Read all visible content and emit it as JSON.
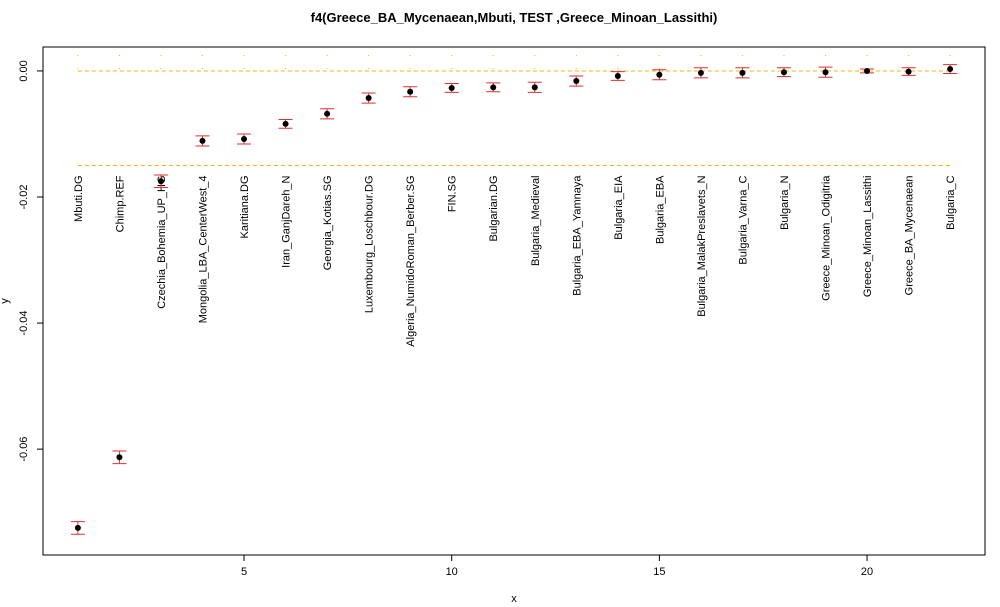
{
  "chart_data": {
    "type": "scatter",
    "title": "f4(Greece_BA_Mycenaean,Mbuti, TEST ,Greece_Minoan_Lassithi)",
    "x_label": "x",
    "y_label": "y",
    "x": [
      1,
      2,
      3,
      4,
      5,
      6,
      7,
      8,
      9,
      10,
      11,
      12,
      13,
      14,
      15,
      16,
      17,
      18,
      19,
      20,
      21,
      22
    ],
    "point_labels": [
      "Mbuti.DG",
      "Chimp.REF",
      "Czechia_Bohemia_UP_HG",
      "Mongolia_LBA_CenterWest_4",
      "Karitiana.DG",
      "Iran_GanjDareh_N",
      "Georgia_Kotias.SG",
      "Luxembourg_Loschbour.DG",
      "Algeria_NumidoRoman_Berber.SG",
      "FIN.SG",
      "Bulgarian.DG",
      "Bulgaria_Medieval",
      "Bulgaria_EBA_Yamnaya",
      "Bulgaria_EIA",
      "Bulgaria_EBA",
      "Bulgaria_MalakPreslavets_N",
      "Bulgaria_Varna_C",
      "Bulgaria_N",
      "Greece_Minoan_Odigitria",
      "Greece_Minoan_Lassithi",
      "Greece_BA_Mycenaean",
      "Bulgaria_C"
    ],
    "series": [
      {
        "color": "#000000",
        "error_color": "#e03030",
        "values": [
          -0.0725,
          -0.0613,
          -0.0175,
          -0.0111,
          -0.0108,
          -0.0084,
          -0.0068,
          -0.0043,
          -0.0033,
          -0.0027,
          -0.0026,
          -0.0026,
          -0.0016,
          -0.0008,
          -0.0006,
          -0.0003,
          -0.0003,
          -0.0002,
          -0.0002,
          0,
          -0.0001,
          0.0003
        ],
        "errors": [
          0.001,
          0.001,
          0.001,
          0.0008,
          0.0008,
          0.0007,
          0.0008,
          0.0008,
          0.0008,
          0.0007,
          0.0007,
          0.0008,
          0.0008,
          0.0007,
          0.0008,
          0.0008,
          0.0008,
          0.0007,
          0.0008,
          0.0003,
          0.0006,
          0.0007
        ]
      }
    ],
    "hlines": [
      0,
      -0.015
    ],
    "hline_color": "#f5b800",
    "xlim": [
      0.16,
      22.84
    ],
    "ylim": [
      -0.0768,
      0.0038
    ],
    "xticks": [
      5,
      10,
      15,
      20
    ],
    "yticks": [
      {
        "value": 0,
        "label": "0.00"
      },
      {
        "value": -0.02,
        "label": "-0.02"
      },
      {
        "value": -0.04,
        "label": "-0.04"
      },
      {
        "value": -0.06,
        "label": "-0.06"
      }
    ]
  }
}
